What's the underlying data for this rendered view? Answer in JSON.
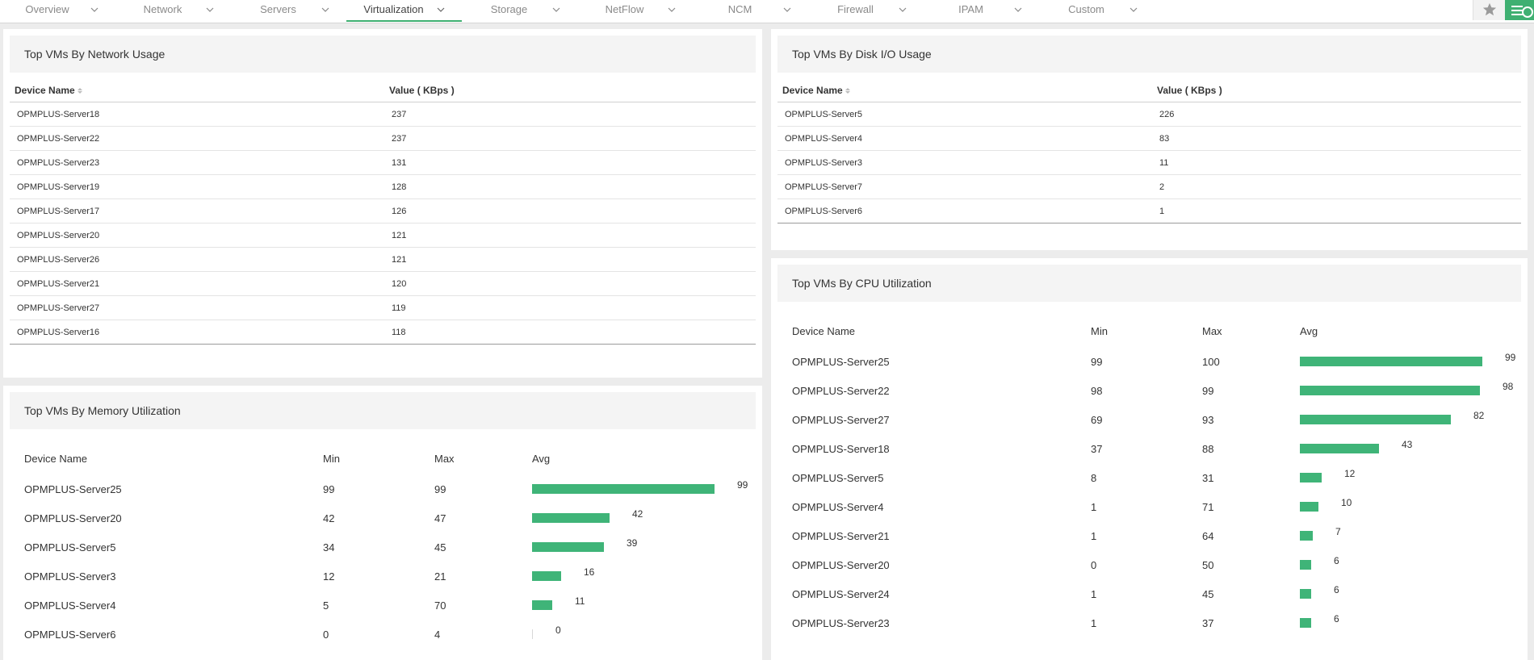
{
  "nav": {
    "tabs": [
      {
        "label": "Overview",
        "active": false
      },
      {
        "label": "Network",
        "active": false
      },
      {
        "label": "Servers",
        "active": false
      },
      {
        "label": "Virtualization",
        "active": true
      },
      {
        "label": "Storage",
        "active": false
      },
      {
        "label": "NetFlow",
        "active": false
      },
      {
        "label": "NCM",
        "active": false
      },
      {
        "label": "Firewall",
        "active": false
      },
      {
        "label": "IPAM",
        "active": false
      },
      {
        "label": "Custom",
        "active": false
      }
    ],
    "star_icon": "star-icon",
    "menu_icon": "menu-icon"
  },
  "network_usage": {
    "title": "Top VMs By Network Usage",
    "col_device": "Device Name",
    "col_value": "Value ( KBps )",
    "rows": [
      {
        "device": "OPMPLUS-Server18",
        "value": "237"
      },
      {
        "device": "OPMPLUS-Server22",
        "value": "237"
      },
      {
        "device": "OPMPLUS-Server23",
        "value": "131"
      },
      {
        "device": "OPMPLUS-Server19",
        "value": "128"
      },
      {
        "device": "OPMPLUS-Server17",
        "value": "126"
      },
      {
        "device": "OPMPLUS-Server20",
        "value": "121"
      },
      {
        "device": "OPMPLUS-Server26",
        "value": "121"
      },
      {
        "device": "OPMPLUS-Server21",
        "value": "120"
      },
      {
        "device": "OPMPLUS-Server27",
        "value": "119"
      },
      {
        "device": "OPMPLUS-Server16",
        "value": "118"
      }
    ]
  },
  "disk_io": {
    "title": "Top VMs By Disk I/O Usage",
    "col_device": "Device Name",
    "col_value": "Value ( KBps )",
    "rows": [
      {
        "device": "OPMPLUS-Server5",
        "value": "226"
      },
      {
        "device": "OPMPLUS-Server4",
        "value": "83"
      },
      {
        "device": "OPMPLUS-Server3",
        "value": "11"
      },
      {
        "device": "OPMPLUS-Server7",
        "value": "2"
      },
      {
        "device": "OPMPLUS-Server6",
        "value": "1"
      }
    ]
  },
  "memory": {
    "title": "Top VMs By Memory Utilization",
    "col_device": "Device Name",
    "col_min": "Min",
    "col_max": "Max",
    "col_avg": "Avg",
    "rows": [
      {
        "device": "OPMPLUS-Server25",
        "min": "99",
        "max": "99",
        "avg": 99
      },
      {
        "device": "OPMPLUS-Server20",
        "min": "42",
        "max": "47",
        "avg": 42
      },
      {
        "device": "OPMPLUS-Server5",
        "min": "34",
        "max": "45",
        "avg": 39
      },
      {
        "device": "OPMPLUS-Server3",
        "min": "12",
        "max": "21",
        "avg": 16
      },
      {
        "device": "OPMPLUS-Server4",
        "min": "5",
        "max": "70",
        "avg": 11
      },
      {
        "device": "OPMPLUS-Server6",
        "min": "0",
        "max": "4",
        "avg": 0
      }
    ]
  },
  "cpu": {
    "title": "Top VMs By CPU Utilization",
    "col_device": "Device Name",
    "col_min": "Min",
    "col_max": "Max",
    "col_avg": "Avg",
    "rows": [
      {
        "device": "OPMPLUS-Server25",
        "min": "99",
        "max": "100",
        "avg": 99
      },
      {
        "device": "OPMPLUS-Server22",
        "min": "98",
        "max": "99",
        "avg": 98
      },
      {
        "device": "OPMPLUS-Server27",
        "min": "69",
        "max": "93",
        "avg": 82
      },
      {
        "device": "OPMPLUS-Server18",
        "min": "37",
        "max": "88",
        "avg": 43
      },
      {
        "device": "OPMPLUS-Server5",
        "min": "8",
        "max": "31",
        "avg": 12
      },
      {
        "device": "OPMPLUS-Server4",
        "min": "1",
        "max": "71",
        "avg": 10
      },
      {
        "device": "OPMPLUS-Server21",
        "min": "1",
        "max": "64",
        "avg": 7
      },
      {
        "device": "OPMPLUS-Server20",
        "min": "0",
        "max": "50",
        "avg": 6
      },
      {
        "device": "OPMPLUS-Server24",
        "min": "1",
        "max": "45",
        "avg": 6
      },
      {
        "device": "OPMPLUS-Server23",
        "min": "1",
        "max": "37",
        "avg": 6
      }
    ]
  },
  "colors": {
    "accent": "#3fb072",
    "bar": "#3fb478"
  }
}
